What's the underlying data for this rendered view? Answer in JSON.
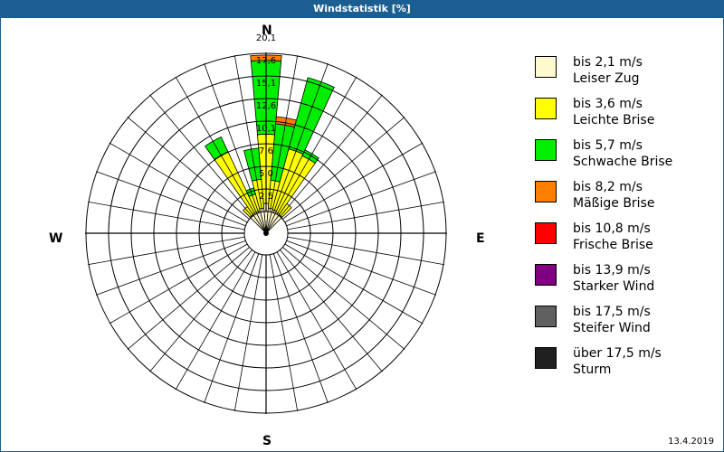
{
  "window": {
    "title": "Windstatistik [%]"
  },
  "compass": {
    "north": "N",
    "east": "E",
    "south": "S",
    "west": "W"
  },
  "ring_labels": [
    "2,5",
    "5,0",
    "7,6",
    "10,1",
    "12,6",
    "15,1",
    "17,6",
    "20,1"
  ],
  "legend": [
    {
      "range": "bis 2,1 m/s",
      "name": "Leiser Zug",
      "color": "#fffacd"
    },
    {
      "range": "bis 3,6 m/s",
      "name": "Leichte Brise",
      "color": "#ffff00"
    },
    {
      "range": "bis 5,7 m/s",
      "name": "Schwache Brise",
      "color": "#00ee00"
    },
    {
      "range": "bis 8,2 m/s",
      "name": "Mäßige Brise",
      "color": "#ff8000"
    },
    {
      "range": "bis 10,8 m/s",
      "name": "Frische Brise",
      "color": "#ff0000"
    },
    {
      "range": "bis 13,9 m/s",
      "name": "Starker Wind",
      "color": "#800080"
    },
    {
      "range": "bis 17,5 m/s",
      "name": "Steifer Wind",
      "color": "#606060"
    },
    {
      "range": "über 17,5 m/s",
      "name": "Sturm",
      "color": "#202020"
    }
  ],
  "footer": {
    "date": "13.4.2019"
  },
  "chart_data": {
    "type": "windrose",
    "title": "Windstatistik [%]",
    "unit": "%",
    "radial_ticks": [
      2.5,
      5.0,
      7.6,
      10.1,
      12.6,
      15.1,
      17.6,
      20.1
    ],
    "sector_width_deg": 10,
    "speed_classes": [
      "bis 2,1 m/s",
      "bis 3,6 m/s",
      "bis 5,7 m/s",
      "bis 8,2 m/s",
      "bis 10,8 m/s",
      "bis 13,9 m/s",
      "bis 17,5 m/s",
      "über 17,5 m/s"
    ],
    "sectors": [
      {
        "direction_deg": 0,
        "cumulative": [
          0.9,
          8.6,
          16.8,
          17.4,
          17.4,
          17.4,
          17.4,
          17.4
        ]
      },
      {
        "direction_deg": 10,
        "cumulative": [
          0.4,
          3.5,
          9.8,
          10.6,
          10.6,
          10.6,
          10.6,
          10.6
        ]
      },
      {
        "direction_deg": 20,
        "cumulative": [
          0.3,
          7.3,
          15.5,
          15.5,
          15.5,
          15.5,
          15.5,
          15.5
        ]
      },
      {
        "direction_deg": 30,
        "cumulative": [
          0.2,
          7.1,
          7.8,
          7.8,
          7.8,
          7.8,
          7.8,
          7.8
        ]
      },
      {
        "direction_deg": 40,
        "cumulative": [
          0.1,
          1.6,
          1.6,
          1.6,
          1.6,
          1.6,
          1.6,
          1.6
        ]
      },
      {
        "direction_deg": 320,
        "cumulative": [
          0.1,
          1.2,
          1.2,
          1.2,
          1.2,
          1.2,
          1.2,
          1.2
        ]
      },
      {
        "direction_deg": 330,
        "cumulative": [
          0.2,
          7.6,
          9.4,
          9.4,
          9.4,
          9.4,
          9.4,
          9.4
        ]
      },
      {
        "direction_deg": 340,
        "cumulative": [
          0.2,
          2.1,
          2.8,
          2.8,
          2.8,
          2.8,
          2.8,
          2.8
        ]
      },
      {
        "direction_deg": 350,
        "cumulative": [
          0.4,
          3.6,
          7.1,
          7.1,
          7.1,
          7.1,
          7.1,
          7.1
        ]
      }
    ]
  }
}
